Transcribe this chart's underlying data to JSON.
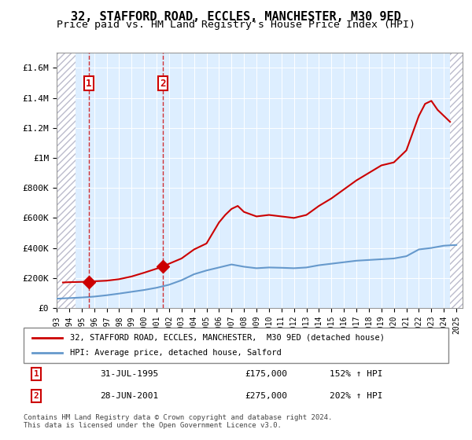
{
  "title": "32, STAFFORD ROAD, ECCLES, MANCHESTER, M30 9ED",
  "subtitle": "Price paid vs. HM Land Registry's House Price Index (HPI)",
  "title_fontsize": 11,
  "subtitle_fontsize": 9.5,
  "ylabel_ticks": [
    "£0",
    "£200K",
    "£400K",
    "£600K",
    "£800K",
    "£1M",
    "£1.2M",
    "£1.4M",
    "£1.6M"
  ],
  "ytick_values": [
    0,
    200000,
    400000,
    600000,
    800000,
    1000000,
    1200000,
    1400000,
    1600000
  ],
  "ylim": [
    0,
    1700000
  ],
  "xlim_start": 1993.0,
  "xlim_end": 2025.5,
  "hatch_left_end": 1994.5,
  "hatch_right_start": 2024.5,
  "transaction1_year": 1995.58,
  "transaction1_price": 175000,
  "transaction1_label": "1",
  "transaction1_date": "31-JUL-1995",
  "transaction1_hpi_pct": "152% ↑ HPI",
  "transaction2_year": 2001.5,
  "transaction2_price": 275000,
  "transaction2_label": "2",
  "transaction2_date": "28-JUN-2001",
  "transaction2_hpi_pct": "202% ↑ HPI",
  "red_line_color": "#cc0000",
  "blue_line_color": "#6699cc",
  "hatch_color": "#bbbbcc",
  "bg_plot_color": "#ddeeff",
  "grid_color": "#aaaaaa",
  "legend_line1": "32, STAFFORD ROAD, ECCLES, MANCHESTER,  M30 9ED (detached house)",
  "legend_line2": "HPI: Average price, detached house, Salford",
  "footer": "Contains HM Land Registry data © Crown copyright and database right 2024.\nThis data is licensed under the Open Government Licence v3.0.",
  "hpi_years": [
    1993.0,
    1994.0,
    1995.0,
    1996.0,
    1997.0,
    1998.0,
    1999.0,
    2000.0,
    2001.0,
    2002.0,
    2003.0,
    2004.0,
    2005.0,
    2006.0,
    2007.0,
    2008.0,
    2009.0,
    2010.0,
    2011.0,
    2012.0,
    2013.0,
    2014.0,
    2015.0,
    2016.0,
    2017.0,
    2018.0,
    2019.0,
    2020.0,
    2021.0,
    2022.0,
    2023.0,
    2024.0,
    2025.0
  ],
  "hpi_values": [
    62000,
    66000,
    70000,
    76000,
    85000,
    96000,
    108000,
    120000,
    135000,
    155000,
    185000,
    225000,
    250000,
    270000,
    290000,
    275000,
    265000,
    270000,
    268000,
    265000,
    270000,
    285000,
    295000,
    305000,
    315000,
    320000,
    325000,
    330000,
    345000,
    390000,
    400000,
    415000,
    420000
  ],
  "red_years": [
    1993.5,
    1994.0,
    1994.5,
    1995.0,
    1995.58,
    1996.0,
    1997.0,
    1998.0,
    1999.0,
    2000.0,
    2001.0,
    2001.5,
    2002.0,
    2003.0,
    2004.0,
    2005.0,
    2006.0,
    2006.5,
    2007.0,
    2007.5,
    2008.0,
    2009.0,
    2010.0,
    2011.0,
    2012.0,
    2013.0,
    2014.0,
    2015.0,
    2016.0,
    2017.0,
    2018.0,
    2019.0,
    2020.0,
    2021.0,
    2022.0,
    2022.5,
    2023.0,
    2023.5,
    2024.0,
    2024.5
  ],
  "red_values": [
    170000,
    172000,
    173000,
    174000,
    175000,
    178000,
    182000,
    192000,
    210000,
    235000,
    262000,
    275000,
    295000,
    330000,
    390000,
    430000,
    570000,
    620000,
    660000,
    680000,
    640000,
    610000,
    620000,
    610000,
    600000,
    620000,
    680000,
    730000,
    790000,
    850000,
    900000,
    950000,
    970000,
    1050000,
    1280000,
    1360000,
    1380000,
    1320000,
    1280000,
    1240000
  ]
}
